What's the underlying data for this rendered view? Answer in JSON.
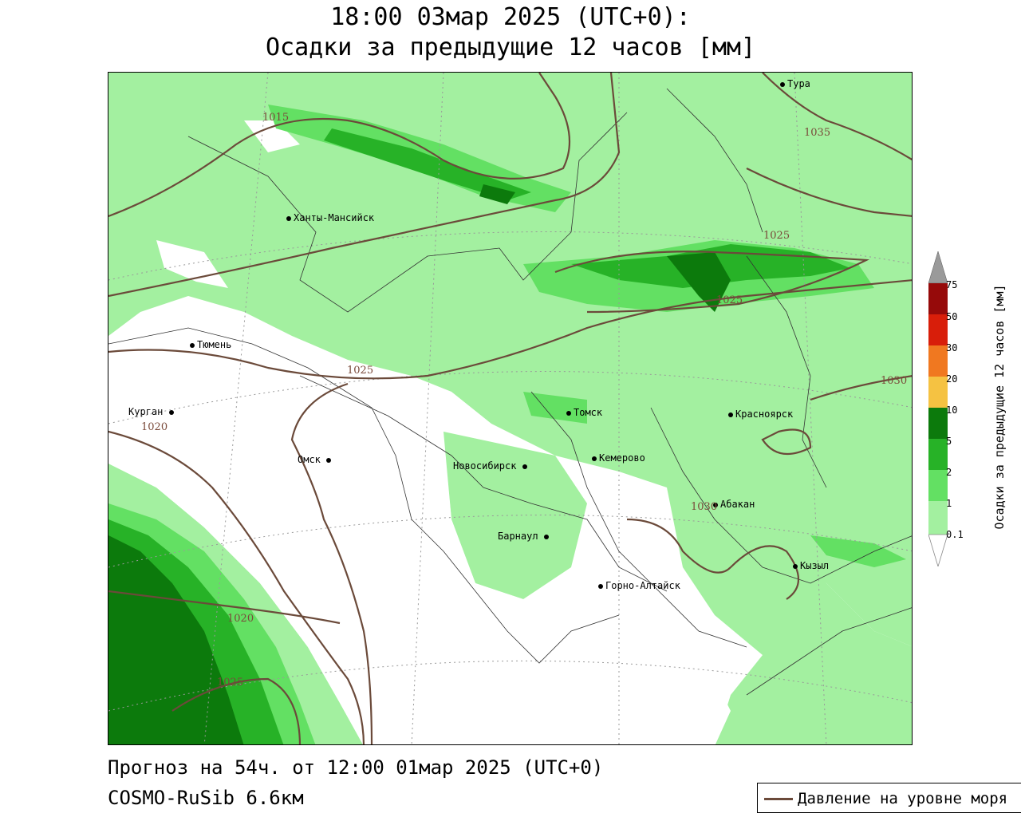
{
  "title_line1": "18:00 03мар 2025 (UTC+0):",
  "title_line2": "Осадки за предыдущие 12 часов [мм]",
  "legend": {
    "title": "Осадки за предыдущие 12 часов [мм]",
    "ticks": [
      "0.1",
      "1",
      "2",
      "5",
      "10",
      "20",
      "30",
      "50",
      "75"
    ],
    "colors": [
      "#ffffff",
      "#a3f0a0",
      "#63e063",
      "#27b227",
      "#0c7a0c",
      "#f5c242",
      "#f07820",
      "#d81e0a",
      "#960a0a",
      "#9a9a9a"
    ]
  },
  "cities": [
    {
      "name": "Тура"
    },
    {
      "name": "Ханты-Мансийск"
    },
    {
      "name": "Тюмень"
    },
    {
      "name": "Курган"
    },
    {
      "name": "Омск"
    },
    {
      "name": "Томск"
    },
    {
      "name": "Красноярск"
    },
    {
      "name": "Новосибирск"
    },
    {
      "name": "Кемерово"
    },
    {
      "name": "Абакан"
    },
    {
      "name": "Барнаул"
    },
    {
      "name": "Горно-Алтайск"
    },
    {
      "name": "Кызыл"
    }
  ],
  "isobar_labels": [
    "1015",
    "1035",
    "1025",
    "1025",
    "1025",
    "1030",
    "1020",
    "1030",
    "1020",
    "1025"
  ],
  "footer_line1": "Прогноз на 54ч. от 12:00 01мар 2025 (UTC+0)",
  "footer_line2": "COSMO-RuSib 6.6км",
  "isobar_legend_label": "Давление на уровне моря"
}
